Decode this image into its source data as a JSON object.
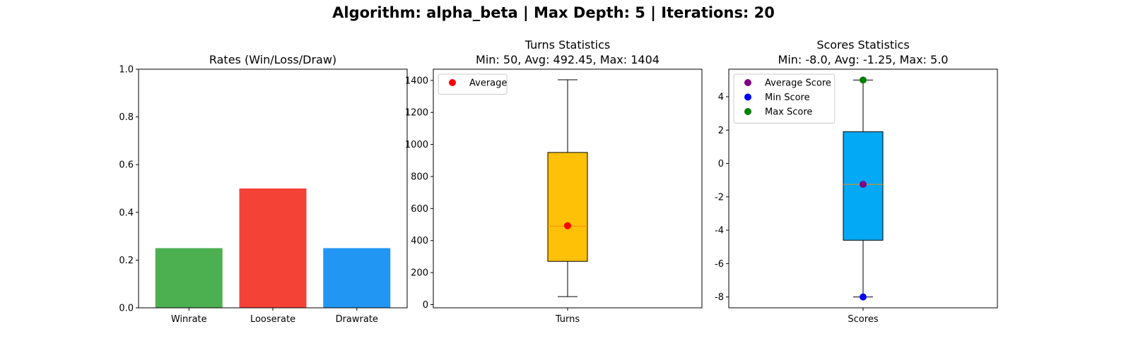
{
  "suptitle": "Algorithm: alpha_beta | Max Depth: 5 | Iterations: 20",
  "chart_data": [
    {
      "type": "bar",
      "title": "Rates (Win/Loss/Draw)",
      "categories": [
        "Winrate",
        "Looserate",
        "Drawrate"
      ],
      "values": [
        0.25,
        0.5,
        0.25
      ],
      "colors": [
        "#4caf50",
        "#f44336",
        "#2196f3"
      ],
      "ylim": [
        0,
        1.0
      ],
      "yticks": [
        "0.0",
        "0.2",
        "0.4",
        "0.6",
        "0.8",
        "1.0"
      ],
      "xlabel": "",
      "ylabel": "",
      "grid": false
    },
    {
      "type": "boxplot",
      "title": "Turns Statistics",
      "subtitle": "Min: 50, Avg: 492.45, Max: 1404",
      "category": "Turns",
      "box": {
        "whislo": 50,
        "q1": 270,
        "median": 490,
        "q3": 950,
        "whishi": 1404
      },
      "box_color": "#ffc107",
      "median_color": "#ff8c00",
      "points": [
        {
          "label": "Average",
          "value": 492.45,
          "color": "#ff0000"
        }
      ],
      "ylim": [
        -20,
        1470
      ],
      "yticks": [
        "0",
        "200",
        "400",
        "600",
        "800",
        "1000",
        "1200",
        "1400"
      ],
      "legend": {
        "position": "upper-left",
        "entries": [
          "Average"
        ]
      },
      "grid": false
    },
    {
      "type": "boxplot",
      "title": "Scores Statistics",
      "subtitle": "Min: -8.0, Avg: -1.25, Max: 5.0",
      "category": "Scores",
      "box": {
        "whislo": -8.0,
        "q1": -4.6,
        "median": -1.25,
        "q3": 1.9,
        "whishi": 5.0
      },
      "box_color": "#03a9f4",
      "median_color": "#ff8c00",
      "points": [
        {
          "label": "Average Score",
          "value": -1.25,
          "color": "#800080"
        },
        {
          "label": "Min Score",
          "value": -8.0,
          "color": "#0000ff"
        },
        {
          "label": "Max Score",
          "value": 5.0,
          "color": "#008000"
        }
      ],
      "ylim": [
        -8.65,
        5.65
      ],
      "yticks": [
        "-8",
        "-6",
        "-4",
        "-2",
        "0",
        "2",
        "4"
      ],
      "legend": {
        "position": "upper-left",
        "entries": [
          "Average Score",
          "Min Score",
          "Max Score"
        ]
      },
      "grid": false
    }
  ]
}
